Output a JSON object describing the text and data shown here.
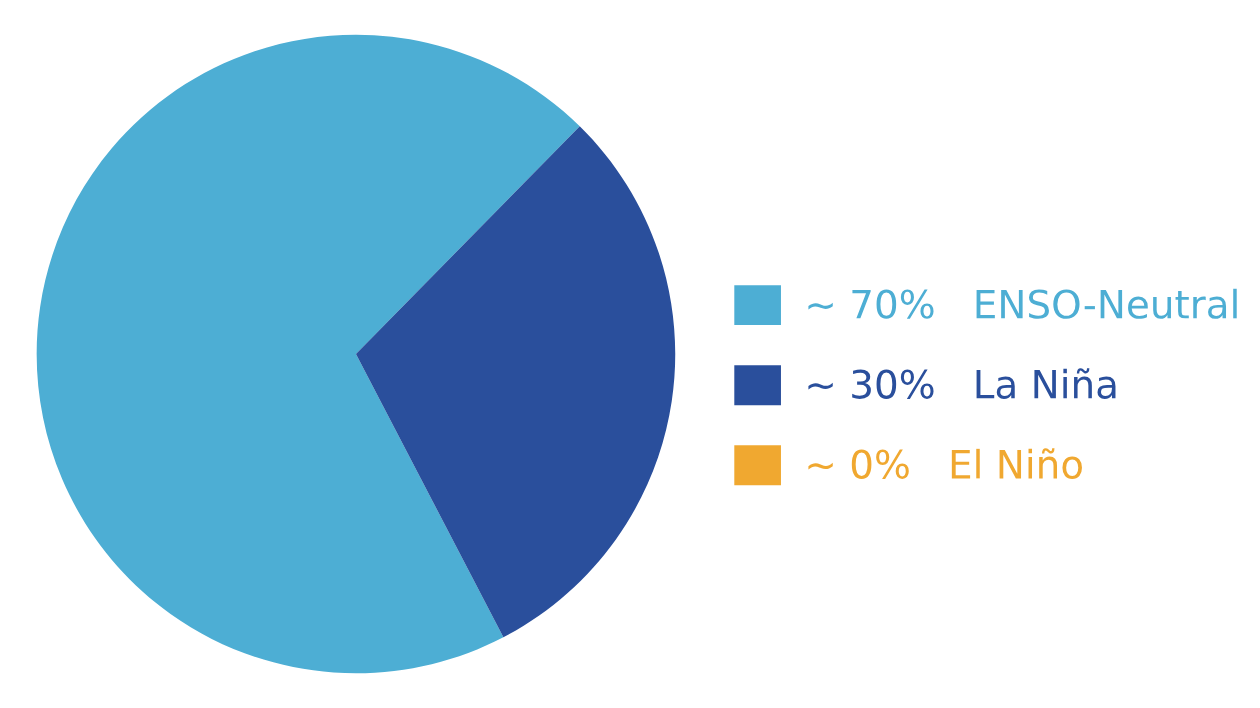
{
  "chart_data": {
    "type": "pie",
    "categories": [
      "ENSO-Neutral",
      "La Niña",
      "El Niño"
    ],
    "values": [
      70,
      30,
      0
    ],
    "colors": [
      "#4daed4",
      "#2a4f9c",
      "#f0a830"
    ],
    "value_labels": [
      "~ 70%",
      "~ 30%",
      "~ 0%"
    ],
    "legend": "right"
  }
}
